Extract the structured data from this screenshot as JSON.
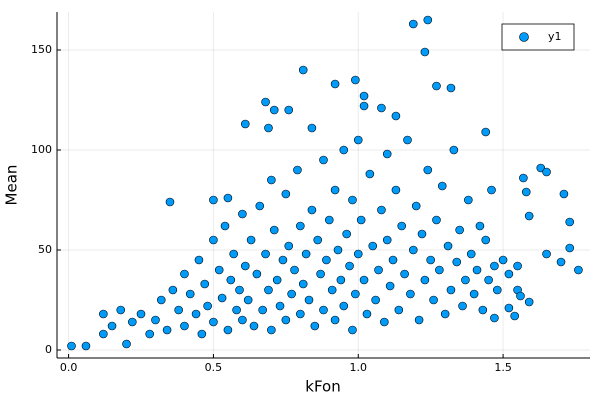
{
  "chart_data": {
    "type": "scatter",
    "x_label": "kFon",
    "y_label": "Mean",
    "xlim": [
      -0.04,
      1.8
    ],
    "ylim": [
      -4,
      169
    ],
    "xticks": [
      {
        "value": 0,
        "label": "0.0"
      },
      {
        "value": 0.5,
        "label": "0.5"
      },
      {
        "value": 1,
        "label": "1.0"
      },
      {
        "value": 1.5,
        "label": "1.5"
      }
    ],
    "yticks": [
      0,
      50,
      100,
      150
    ],
    "grid": true,
    "legend": "topright",
    "x": [
      0.01,
      0.06,
      0.12,
      0.12,
      0.2,
      0.22,
      0.35,
      0.5,
      0.55,
      0.61,
      0.68,
      0.69,
      0.71,
      0.76,
      0.81,
      0.84,
      0.92,
      0.99,
      1.02,
      1.02,
      1.08,
      1.13,
      1.19,
      1.23,
      1.24,
      1.27,
      1.32,
      1.44,
      1.55,
      1.56,
      1.57,
      1.58,
      1.59,
      1.63,
      1.65,
      1.65,
      1.7,
      1.71,
      1.73,
      1.73,
      1.76,
      1.52,
      1.54,
      1.59,
      1.47,
      0.3,
      0.32,
      0.34,
      0.36,
      0.38,
      0.4,
      0.4,
      0.42,
      0.44,
      0.45,
      0.46,
      0.47,
      0.48,
      0.5,
      0.5,
      0.52,
      0.53,
      0.54,
      0.55,
      0.56,
      0.57,
      0.58,
      0.59,
      0.6,
      0.6,
      0.61,
      0.62,
      0.63,
      0.64,
      0.65,
      0.66,
      0.67,
      0.68,
      0.69,
      0.7,
      0.7,
      0.71,
      0.72,
      0.73,
      0.74,
      0.75,
      0.75,
      0.76,
      0.77,
      0.78,
      0.79,
      0.8,
      0.8,
      0.81,
      0.82,
      0.83,
      0.84,
      0.85,
      0.86,
      0.87,
      0.88,
      0.88,
      0.89,
      0.9,
      0.91,
      0.92,
      0.92,
      0.93,
      0.94,
      0.95,
      0.95,
      0.96,
      0.97,
      0.98,
      0.98,
      0.99,
      1.0,
      1.0,
      1.01,
      1.02,
      1.03,
      1.04,
      1.05,
      1.06,
      1.07,
      1.08,
      1.09,
      1.1,
      1.1,
      1.11,
      1.12,
      1.13,
      1.14,
      1.15,
      1.16,
      1.17,
      1.18,
      1.19,
      1.2,
      1.21,
      1.22,
      1.23,
      1.24,
      1.25,
      1.26,
      1.27,
      1.28,
      1.29,
      1.3,
      1.31,
      1.32,
      1.33,
      1.34,
      1.35,
      1.36,
      1.37,
      1.38,
      1.39,
      1.4,
      1.41,
      1.42,
      1.43,
      1.44,
      1.45,
      1.46,
      1.47,
      1.48,
      1.5,
      1.52,
      1.55,
      0.25,
      0.28,
      0.15,
      0.18
    ],
    "series": [
      {
        "name": "y1",
        "color": "#009af9",
        "values": [
          2,
          2,
          18,
          8,
          3,
          14,
          74,
          75,
          76,
          113,
          124,
          111,
          120,
          120,
          140,
          111,
          133,
          135,
          127,
          122,
          121,
          117,
          163,
          149,
          165,
          132,
          131,
          109,
          30,
          27,
          86,
          79,
          67,
          91,
          89,
          48,
          44,
          78,
          64,
          51,
          40,
          21,
          17,
          24,
          16,
          15,
          25,
          10,
          30,
          20,
          38,
          12,
          28,
          18,
          45,
          8,
          33,
          22,
          55,
          14,
          40,
          26,
          62,
          10,
          35,
          48,
          20,
          30,
          68,
          15,
          42,
          25,
          55,
          12,
          38,
          72,
          20,
          48,
          30,
          85,
          10,
          60,
          35,
          22,
          45,
          78,
          15,
          52,
          28,
          40,
          90,
          18,
          62,
          33,
          48,
          25,
          70,
          12,
          55,
          38,
          95,
          20,
          45,
          65,
          30,
          80,
          15,
          50,
          35,
          100,
          22,
          58,
          42,
          75,
          10,
          28,
          105,
          48,
          65,
          35,
          18,
          88,
          52,
          25,
          40,
          70,
          14,
          98,
          55,
          32,
          45,
          80,
          20,
          62,
          38,
          105,
          28,
          50,
          72,
          15,
          58,
          35,
          90,
          45,
          25,
          65,
          40,
          82,
          18,
          52,
          30,
          100,
          44,
          60,
          22,
          35,
          75,
          48,
          28,
          40,
          62,
          20,
          55,
          35,
          80,
          42,
          30,
          45,
          38,
          42,
          18,
          8,
          12,
          20
        ]
      }
    ]
  }
}
